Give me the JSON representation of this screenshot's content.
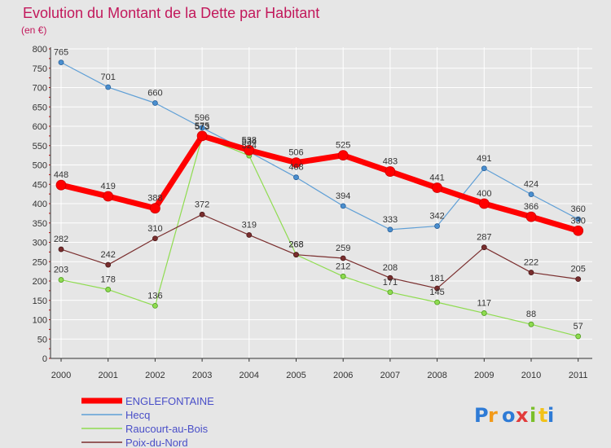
{
  "chart_data": {
    "type": "line",
    "title": "Evolution du Montant de la Dette par Habitant",
    "subtitle": "(en €)",
    "xlabel": "",
    "ylabel": "",
    "categories": [
      "2000",
      "2001",
      "2002",
      "2003",
      "2004",
      "2005",
      "2006",
      "2007",
      "2008",
      "2009",
      "2010",
      "2011"
    ],
    "ylim": [
      0,
      800
    ],
    "yticks": [
      0,
      50,
      100,
      150,
      200,
      250,
      300,
      350,
      400,
      450,
      500,
      550,
      600,
      650,
      700,
      750,
      800
    ],
    "grid": true,
    "legend_position": "bottom-left",
    "series": [
      {
        "name": "ENGLEFONTAINE",
        "color": "#ff0000",
        "values": [
          448,
          419,
          388,
          575,
          538,
          506,
          525,
          483,
          441,
          400,
          366,
          330
        ]
      },
      {
        "name": "Hecq",
        "color": "#5f9fd6",
        "values": [
          765,
          701,
          660,
          596,
          534,
          468,
          394,
          333,
          342,
          491,
          424,
          360
        ]
      },
      {
        "name": "Raucourt-au-Bois",
        "color": "#8fdc50",
        "values": [
          203,
          178,
          136,
          573,
          524,
          268,
          212,
          171,
          145,
          117,
          88,
          57
        ]
      },
      {
        "name": "Poix-du-Nord",
        "color": "#7a2e2e",
        "values": [
          282,
          242,
          310,
          372,
          319,
          268,
          259,
          208,
          181,
          287,
          222,
          205
        ]
      }
    ]
  },
  "logo_text": "Proxiti"
}
